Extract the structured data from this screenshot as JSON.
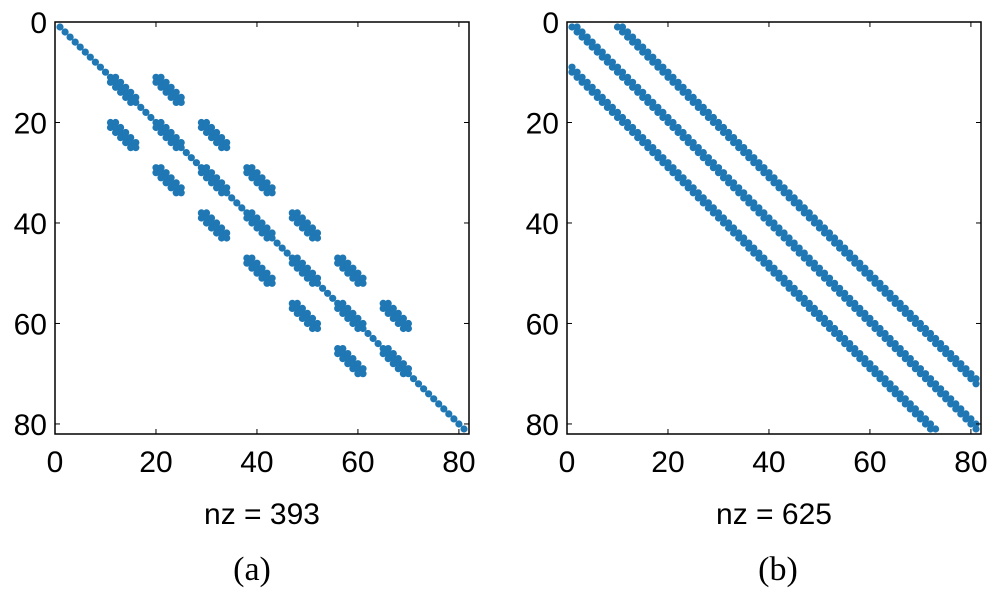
{
  "chart_data": [
    {
      "type": "scatter",
      "panel": "(a)",
      "xlabel": "nz = 393",
      "ylabel": "",
      "xlim": [
        0,
        82
      ],
      "ylim": [
        0,
        82
      ],
      "y_reversed": true,
      "x_ticks": [
        "0",
        "20",
        "40",
        "60",
        "80"
      ],
      "y_ticks": [
        "0",
        "20",
        "40",
        "60",
        "80"
      ],
      "marker_color": "#1f77b4",
      "structure": {
        "main_diagonal": [
          1,
          81
        ],
        "block_size": 6,
        "blocks": [
          {
            "rows": [
              11,
              16
            ],
            "cols": [
              11,
              16
            ]
          },
          {
            "rows": [
              20,
              25
            ],
            "cols": [
              20,
              25
            ]
          },
          {
            "rows": [
              29,
              34
            ],
            "cols": [
              29,
              34
            ]
          },
          {
            "rows": [
              38,
              43
            ],
            "cols": [
              38,
              43
            ]
          },
          {
            "rows": [
              47,
              52
            ],
            "cols": [
              47,
              52
            ]
          },
          {
            "rows": [
              56,
              61
            ],
            "cols": [
              56,
              61
            ]
          },
          {
            "rows": [
              65,
              70
            ],
            "cols": [
              65,
              70
            ]
          },
          {
            "rows": [
              11,
              16
            ],
            "cols": [
              20,
              25
            ]
          },
          {
            "rows": [
              20,
              25
            ],
            "cols": [
              11,
              16
            ]
          },
          {
            "rows": [
              20,
              25
            ],
            "cols": [
              29,
              34
            ]
          },
          {
            "rows": [
              29,
              34
            ],
            "cols": [
              20,
              25
            ]
          },
          {
            "rows": [
              29,
              34
            ],
            "cols": [
              38,
              43
            ]
          },
          {
            "rows": [
              38,
              43
            ],
            "cols": [
              29,
              34
            ]
          },
          {
            "rows": [
              38,
              43
            ],
            "cols": [
              47,
              52
            ]
          },
          {
            "rows": [
              47,
              52
            ],
            "cols": [
              38,
              43
            ]
          },
          {
            "rows": [
              47,
              52
            ],
            "cols": [
              56,
              61
            ]
          },
          {
            "rows": [
              56,
              61
            ],
            "cols": [
              47,
              52
            ]
          },
          {
            "rows": [
              56,
              61
            ],
            "cols": [
              65,
              70
            ]
          },
          {
            "rows": [
              65,
              70
            ],
            "cols": [
              56,
              61
            ]
          }
        ]
      }
    },
    {
      "type": "scatter",
      "panel": "(b)",
      "xlabel": "nz = 625",
      "ylabel": "",
      "xlim": [
        0,
        82
      ],
      "ylim": [
        0,
        82
      ],
      "y_reversed": true,
      "x_ticks": [
        "0",
        "20",
        "40",
        "60",
        "80"
      ],
      "y_ticks": [
        "0",
        "20",
        "40",
        "60",
        "80"
      ],
      "marker_color": "#1f77b4",
      "structure": {
        "n": 81,
        "bands": [
          {
            "offset": -9,
            "width": 2
          },
          {
            "offset": 0,
            "width": 2
          },
          {
            "offset": 9,
            "width": 2
          }
        ]
      }
    }
  ],
  "captions": [
    "(a)",
    "(b)"
  ]
}
